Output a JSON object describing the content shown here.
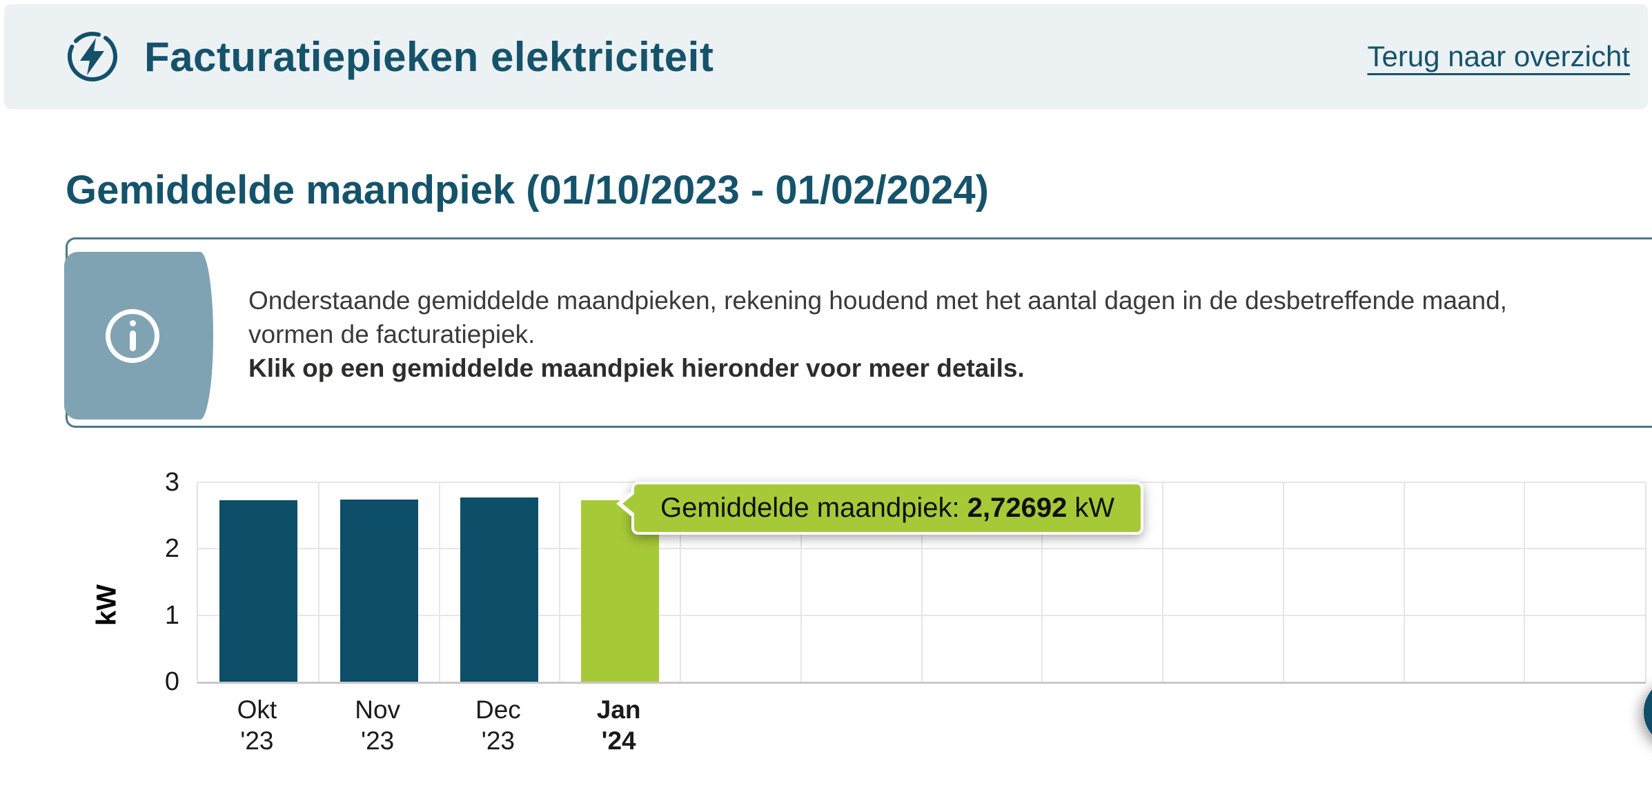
{
  "header": {
    "title": "Facturatiepieken elektriciteit",
    "back_link": "Terug naar overzicht"
  },
  "section": {
    "heading": "Gemiddelde maandpiek (01/10/2023 - 01/02/2024)"
  },
  "info_box": {
    "line1": "Onderstaande gemiddelde maandpieken, rekening houdend met het aantal dagen in de desbetreffende maand,",
    "line2": "vormen de facturatiepiek.",
    "line3_bold": "Klik op een gemiddelde maandpiek hieronder voor meer details."
  },
  "chart_data": {
    "type": "bar",
    "title": "",
    "xlabel": "",
    "ylabel": "kW",
    "ylim": [
      0,
      3
    ],
    "yticks": [
      0,
      1,
      2,
      3
    ],
    "grid": true,
    "total_slots": 12,
    "categories": [
      [
        "Okt",
        "'23"
      ],
      [
        "Nov",
        "'23"
      ],
      [
        "Dec",
        "'23"
      ],
      [
        "Jan",
        "'24"
      ]
    ],
    "values": [
      2.73,
      2.74,
      2.77,
      2.72692
    ],
    "highlighted_index": 3,
    "bar_color": "#0d4e68",
    "highlight_color": "#a6c938",
    "tooltip": {
      "label": "Gemiddelde maandpiek: ",
      "value": "2,72692",
      "unit": " kW"
    }
  },
  "colors": {
    "accent_teal": "#15536b",
    "bar_teal": "#0d4e68",
    "highlight_green": "#a6c938",
    "info_panel": "#7fa3b2",
    "header_bg": "#ecf1f4"
  }
}
